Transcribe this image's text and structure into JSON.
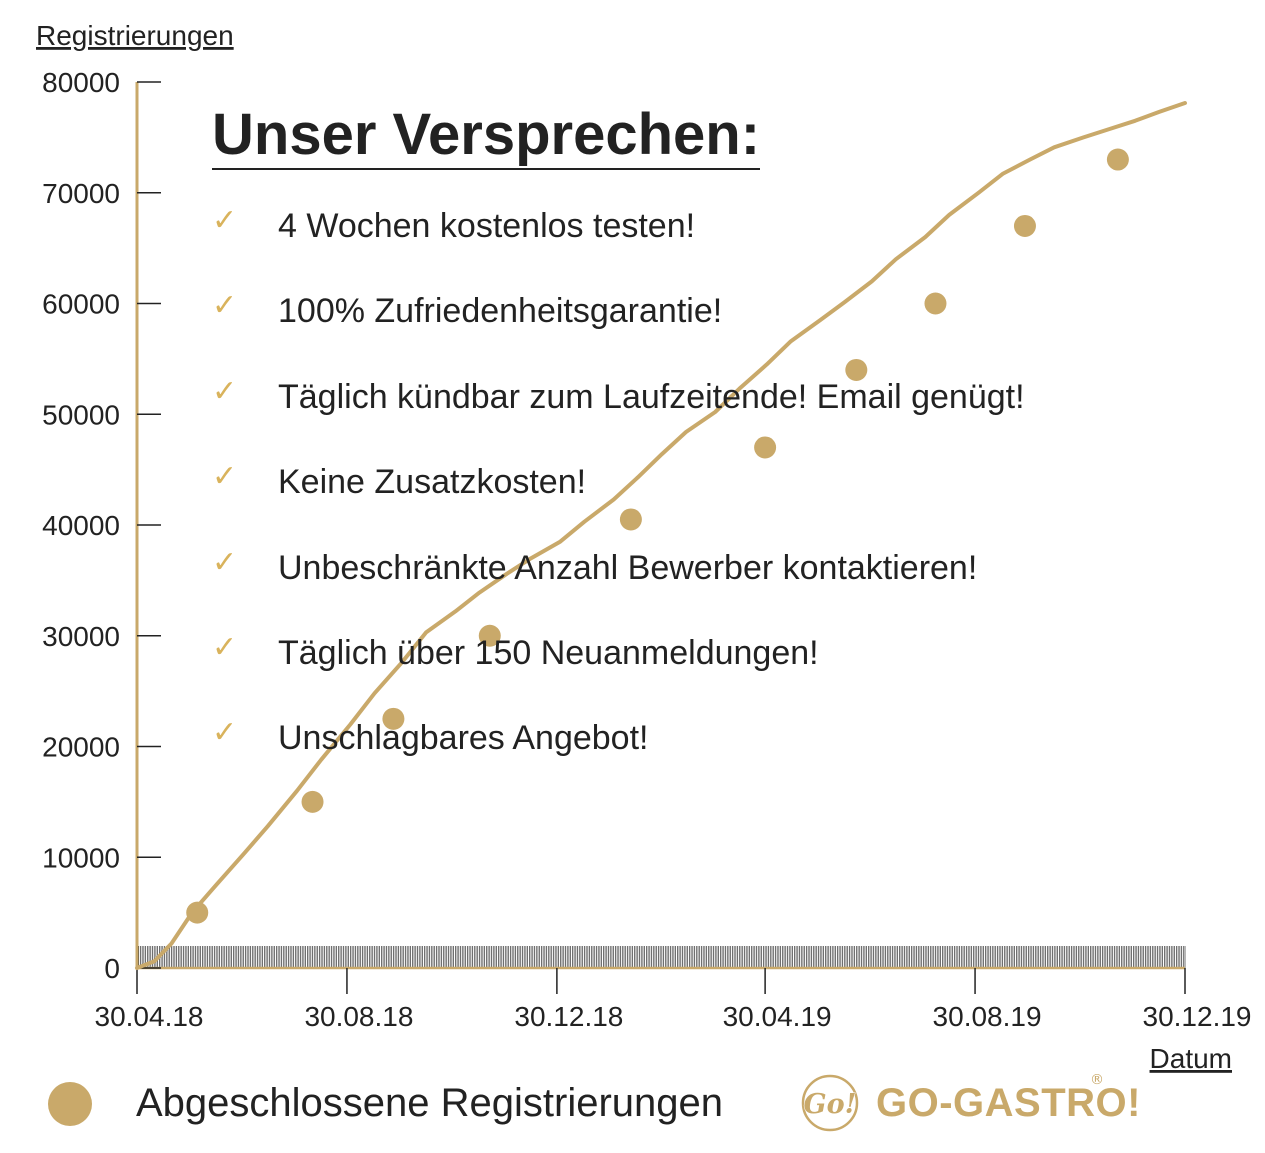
{
  "chart_data": {
    "type": "line",
    "ylabel": "Registrierungen",
    "xlabel": "Datum",
    "ylim": [
      0,
      80000
    ],
    "yticks": [
      "0",
      "10000",
      "20000",
      "30000",
      "40000",
      "50000",
      "60000",
      "70000",
      "80000"
    ],
    "xrange": [
      "2018-04-30",
      "2019-12-30"
    ],
    "xticks": [
      {
        "date": "2018-04-30",
        "label": "30.04.18"
      },
      {
        "date": "2018-08-30",
        "label": "30.08.18"
      },
      {
        "date": "2018-12-30",
        "label": "30.12.18"
      },
      {
        "date": "2019-04-30",
        "label": "30.04.19"
      },
      {
        "date": "2019-08-30",
        "label": "30.08.19"
      },
      {
        "date": "2019-12-30",
        "label": "30.12.19"
      }
    ],
    "line": {
      "x": [
        "2018-04-30",
        "2018-05-10",
        "2018-05-20",
        "2018-06-01",
        "2018-06-15",
        "2018-07-01",
        "2018-07-15",
        "2018-08-01",
        "2018-08-15",
        "2018-09-01",
        "2018-09-15",
        "2018-10-01",
        "2018-10-15",
        "2018-11-01",
        "2018-11-15",
        "2018-12-01",
        "2018-12-15",
        "2019-01-01",
        "2019-01-15",
        "2019-02-01",
        "2019-02-15",
        "2019-03-01",
        "2019-03-15",
        "2019-04-01",
        "2019-04-15",
        "2019-05-01",
        "2019-05-15",
        "2019-06-01",
        "2019-06-15",
        "2019-07-01",
        "2019-07-15",
        "2019-08-01",
        "2019-08-15",
        "2019-09-01",
        "2019-09-15",
        "2019-10-01",
        "2019-10-15",
        "2019-11-01",
        "2019-11-15",
        "2019-12-01",
        "2019-12-15",
        "2019-12-30"
      ],
      "y": [
        0,
        600,
        2200,
        5000,
        7500,
        10300,
        12800,
        16000,
        18800,
        22000,
        24800,
        27600,
        30300,
        32200,
        33900,
        35600,
        37000,
        38500,
        40300,
        42300,
        44300,
        46400,
        48400,
        50200,
        52300,
        54500,
        56600,
        58500,
        60100,
        62000,
        64000,
        66000,
        68000,
        70000,
        71700,
        73000,
        74100,
        75000,
        75700,
        76500,
        77300,
        78100
      ]
    },
    "series": [
      {
        "name": "Abgeschlossene Registrierungen",
        "x": [
          "2018-06-04",
          "2018-08-10",
          "2018-09-26",
          "2018-11-21",
          "2019-02-11",
          "2019-04-30",
          "2019-06-22",
          "2019-08-07",
          "2019-09-28",
          "2019-11-21"
        ],
        "y": [
          5000,
          15000,
          22500,
          30000,
          40500,
          47000,
          54000,
          60000,
          67000,
          73000
        ]
      }
    ],
    "colors": {
      "line": "#c9a96a",
      "points": "#c9a96a",
      "axis": "#c9a96a",
      "text": "#222222"
    },
    "grid": false,
    "legend_position": "bottom-left"
  },
  "promise": {
    "title": "Unser Versprechen:",
    "check_icon": "checkmark-icon",
    "items": [
      "4 Wochen kostenlos testen!",
      "100% Zufriedenheitsgarantie!",
      "Täglich kündbar zum Laufzeitende! Email genügt!",
      "Keine Zusatzkosten!",
      "Unbeschränkte Anzahl Bewerber kontaktieren!",
      "Täglich über 150 Neuanmeldungen!",
      "Unschlagbares Angebot!"
    ]
  },
  "legend": {
    "label": "Abgeschlossene Registrierungen"
  },
  "brand": {
    "mark": "Go!",
    "name": "GO-GASTRO!",
    "registered": "®",
    "color": "#c9a96a",
    "check_color": "#d9b35c"
  }
}
